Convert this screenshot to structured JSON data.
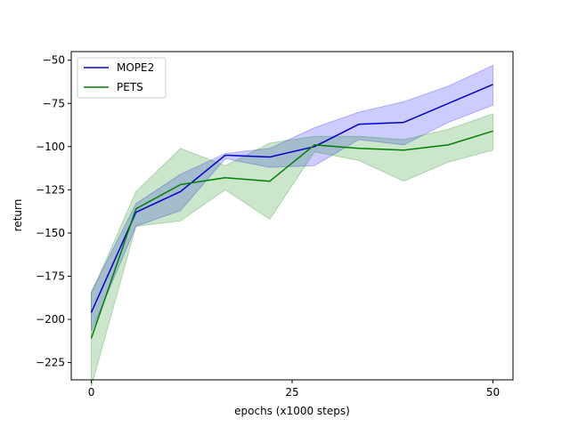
{
  "chart_data": {
    "type": "line",
    "title": "",
    "xlabel": "epochs (x1000 steps)",
    "ylabel": "return",
    "xlim": [
      -2.5,
      52.5
    ],
    "ylim": [
      -235,
      -45
    ],
    "xticks": [
      0,
      25,
      50
    ],
    "yticks": [
      -50,
      -75,
      -100,
      -125,
      -150,
      -175,
      -200,
      -225
    ],
    "grid": false,
    "legend_position": "top-left",
    "x": [
      0,
      5.56,
      11.11,
      16.67,
      22.22,
      27.78,
      33.33,
      38.89,
      44.44,
      50
    ],
    "series": [
      {
        "name": "MOPE2",
        "color": "#0000cc",
        "band_color": "#0000ff",
        "mean": [
          -196,
          -138,
          -126,
          -105,
          -106,
          -100,
          -87,
          -86,
          -75,
          -64
        ],
        "upper": [
          -184,
          -133,
          -116,
          -104,
          -101,
          -89,
          -80,
          -74,
          -65,
          -53
        ],
        "lower": [
          -207,
          -146,
          -137,
          -107,
          -112,
          -111,
          -96,
          -99,
          -86,
          -76
        ]
      },
      {
        "name": "PETS",
        "color": "#008000",
        "band_color": "#008000",
        "mean": [
          -211,
          -136,
          -122,
          -118,
          -120,
          -99,
          -101,
          -102,
          -99,
          -91
        ],
        "upper": [
          -185,
          -126,
          -101,
          -111,
          -98,
          -94,
          -94,
          -96,
          -90,
          -81
        ],
        "lower": [
          -239,
          -146,
          -143,
          -125,
          -142,
          -103,
          -108,
          -120,
          -109,
          -102
        ]
      }
    ]
  }
}
